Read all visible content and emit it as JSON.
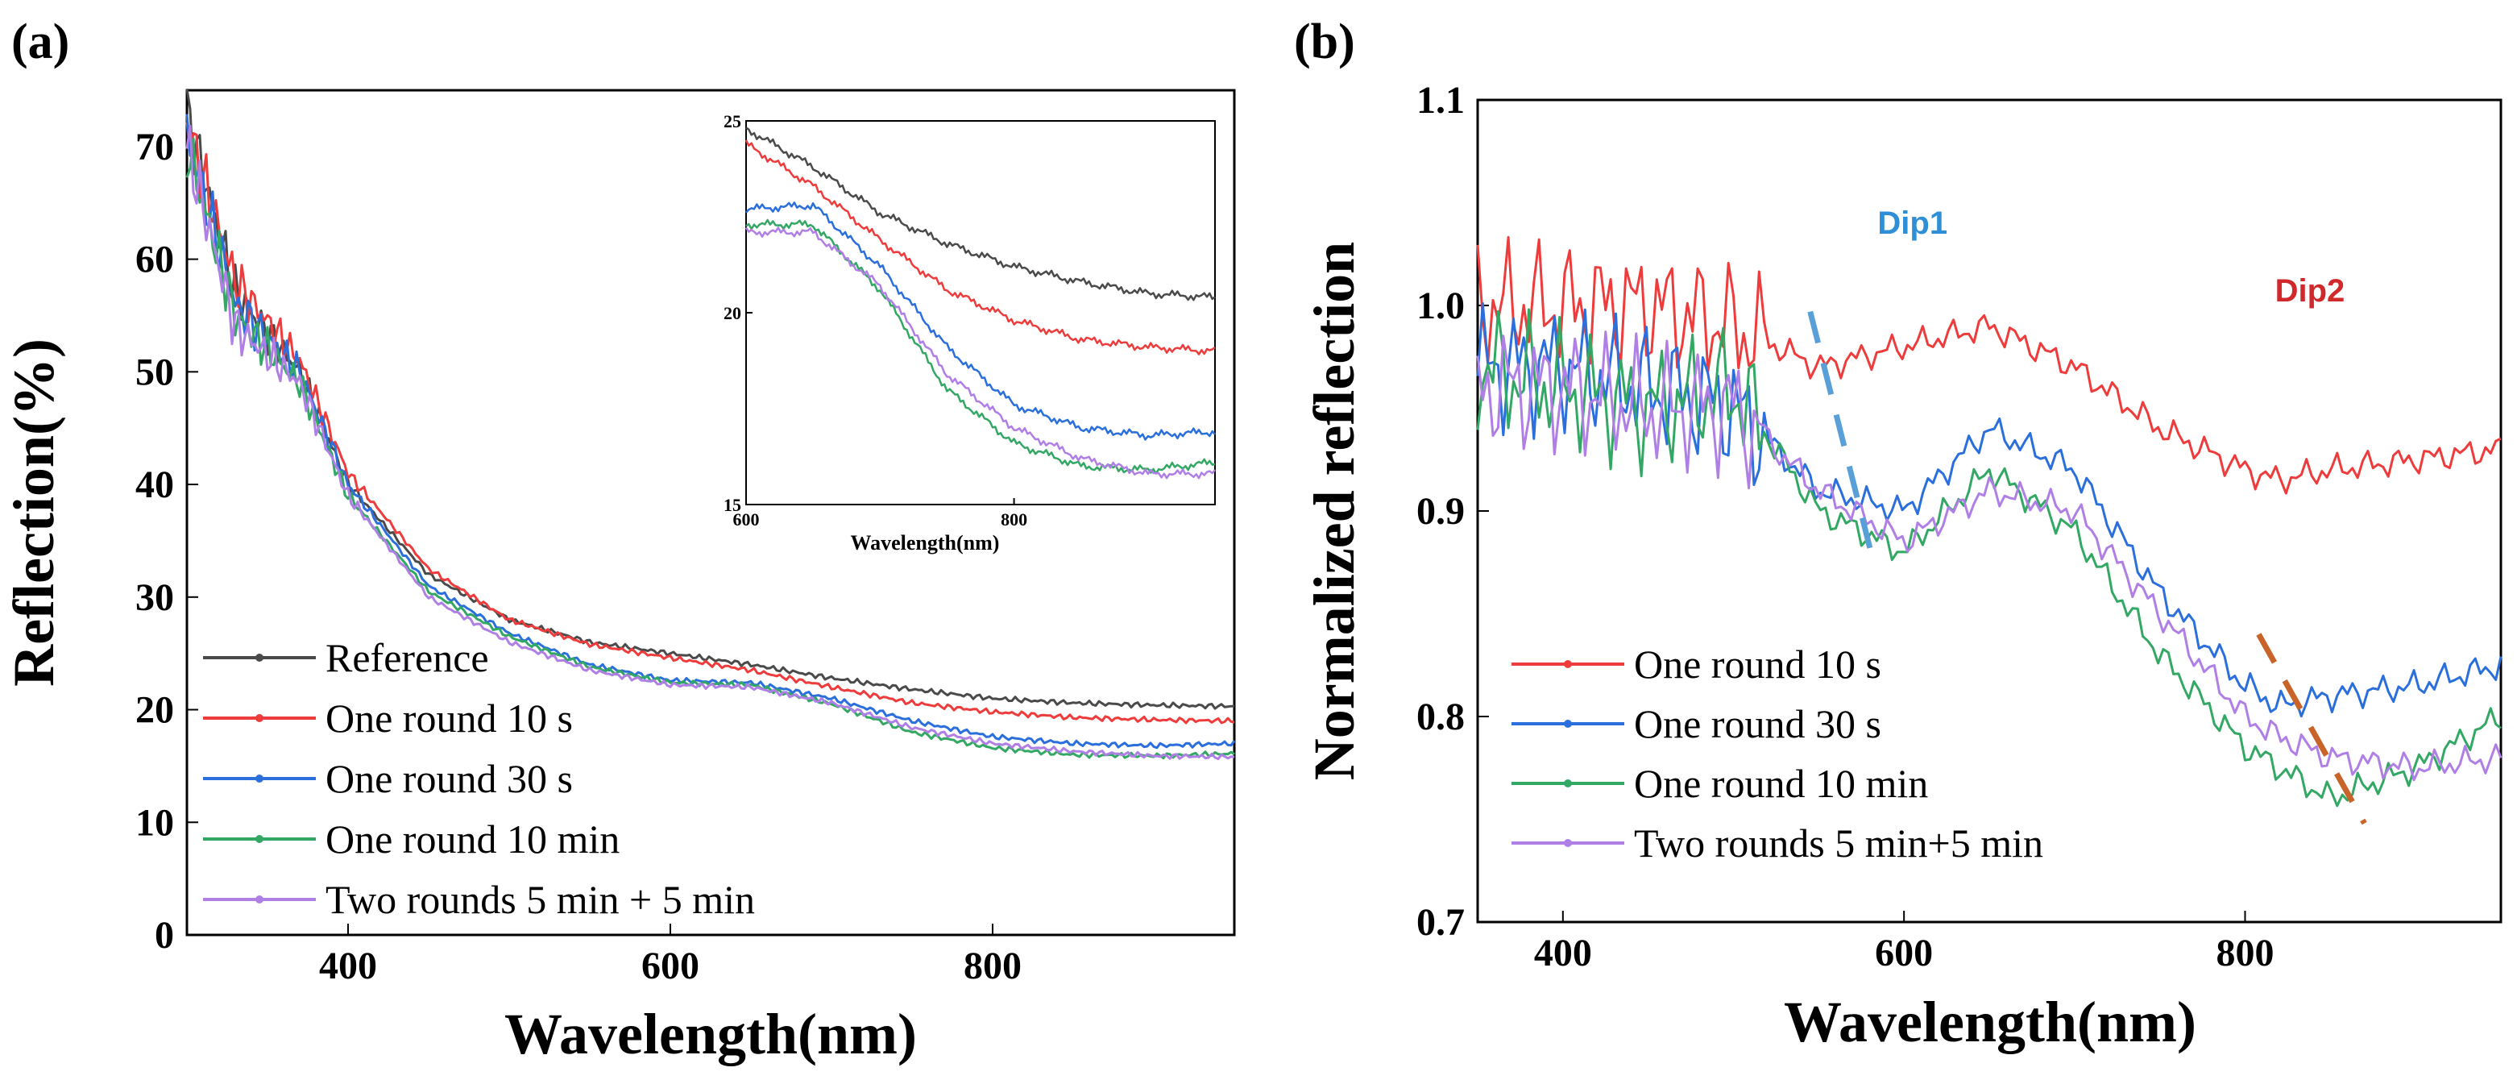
{
  "figure": {
    "panel_a_label": "(a)",
    "panel_b_label": "(b)"
  },
  "colors": {
    "Reference": "#4a4a4a",
    "One round 10 s": "#ee3b3b",
    "One round 30 s": "#2a6fdb",
    "One round 10 min": "#33a864",
    "Two rounds": "#b07fe6",
    "dip1": "#5aa0d8",
    "dip2": "#c8642a",
    "dip1_text": "#2f8fd6",
    "dip2_text": "#d0282b"
  },
  "chart_data": [
    {
      "id": "a",
      "type": "line",
      "title": "",
      "xlabel": "Wavelength(nm)",
      "ylabel": "Reflection(%)",
      "xlim": [
        300,
        950
      ],
      "ylim": [
        0,
        75
      ],
      "xticks": [
        400,
        600,
        800
      ],
      "yticks": [
        0,
        10,
        20,
        30,
        40,
        50,
        60,
        70
      ],
      "legend_position": "bottom-left",
      "series": [
        {
          "name": "Reference",
          "x": [
            300,
            330,
            370,
            400,
            450,
            500,
            550,
            600,
            650,
            700,
            750,
            800,
            850,
            900,
            950
          ],
          "values": [
            73,
            57,
            50,
            40,
            32,
            28,
            26,
            25,
            24,
            22.8,
            21.8,
            21,
            20.6,
            20.4,
            20.3
          ]
        },
        {
          "name": "One round 10 s",
          "x": [
            300,
            330,
            370,
            400,
            450,
            500,
            550,
            600,
            650,
            700,
            750,
            800,
            850,
            900,
            950
          ],
          "values": [
            72,
            58,
            51,
            41,
            32.5,
            28,
            25.8,
            24.6,
            23.5,
            22,
            20.6,
            19.8,
            19.3,
            19.1,
            19
          ]
        },
        {
          "name": "One round 30 s",
          "x": [
            300,
            330,
            370,
            400,
            450,
            500,
            550,
            600,
            650,
            700,
            750,
            800,
            850,
            900,
            950
          ],
          "values": [
            71,
            56,
            50,
            40,
            31,
            26.8,
            24,
            22.6,
            22.4,
            21,
            19,
            17.6,
            17,
            16.8,
            17
          ]
        },
        {
          "name": "One round 10 min",
          "x": [
            300,
            330,
            370,
            400,
            450,
            500,
            550,
            600,
            650,
            700,
            750,
            800,
            850,
            900,
            950
          ],
          "values": [
            70,
            55,
            49,
            39,
            30.5,
            26.5,
            23.8,
            22.4,
            22.2,
            20.5,
            18,
            16.6,
            16,
            15.9,
            16.1
          ]
        },
        {
          "name": "Two rounds 5 min + 5 min",
          "x": [
            300,
            330,
            370,
            400,
            450,
            500,
            550,
            600,
            650,
            700,
            750,
            800,
            850,
            900,
            950
          ],
          "values": [
            70,
            54,
            49,
            39,
            30,
            26,
            23.5,
            22.2,
            22,
            20.6,
            18.4,
            17,
            16.3,
            15.9,
            15.8
          ]
        }
      ],
      "inset": {
        "xlabel": "Wavelength(nm)",
        "xlim": [
          600,
          950
        ],
        "ylim": [
          15,
          25
        ],
        "xticks": [
          600,
          800
        ],
        "yticks": [
          15,
          20,
          25
        ],
        "series": [
          {
            "name": "Reference",
            "x": [
              600,
              650,
              700,
              750,
              800,
              850,
              900,
              950
            ],
            "values": [
              24.8,
              23.8,
              22.6,
              21.8,
              21.2,
              20.8,
              20.5,
              20.4
            ]
          },
          {
            "name": "One round 10 s",
            "x": [
              600,
              650,
              700,
              750,
              800,
              850,
              900,
              950
            ],
            "values": [
              24.4,
              23.3,
              21.9,
              20.6,
              19.8,
              19.3,
              19.1,
              19.0
            ]
          },
          {
            "name": "One round 30 s",
            "x": [
              600,
              650,
              700,
              750,
              800,
              850,
              900,
              950
            ],
            "values": [
              22.7,
              22.8,
              21.2,
              19.1,
              17.6,
              17.0,
              16.8,
              16.9
            ]
          },
          {
            "name": "One round 10 min",
            "x": [
              600,
              650,
              700,
              750,
              800,
              850,
              900,
              950
            ],
            "values": [
              22.3,
              22.3,
              20.6,
              18.0,
              16.6,
              16.0,
              15.9,
              16.1
            ]
          },
          {
            "name": "Two rounds 5 min + 5 min",
            "x": [
              600,
              650,
              700,
              750,
              800,
              850,
              900,
              950
            ],
            "values": [
              22.1,
              22.1,
              20.7,
              18.4,
              17.0,
              16.2,
              15.8,
              15.8
            ]
          }
        ]
      }
    },
    {
      "id": "b",
      "type": "line",
      "title": "",
      "xlabel": "Wavelength(nm)",
      "ylabel": "Normalized reflection",
      "xlim": [
        350,
        950
      ],
      "ylim": [
        0.7,
        1.1
      ],
      "xticks": [
        400,
        600,
        800
      ],
      "yticks": [
        0.7,
        0.8,
        0.9,
        1.0,
        1.1
      ],
      "legend_position": "bottom-left",
      "series": [
        {
          "name": "One round 10 s",
          "x": [
            350,
            400,
            450,
            500,
            550,
            600,
            650,
            700,
            750,
            800,
            820,
            850,
            900,
            950
          ],
          "values": [
            1.0,
            1.0,
            1.0,
            0.99,
            0.97,
            0.98,
            0.99,
            0.97,
            0.94,
            0.92,
            0.915,
            0.92,
            0.925,
            0.93
          ]
        },
        {
          "name": "One round 30 s",
          "x": [
            350,
            400,
            450,
            500,
            550,
            600,
            650,
            700,
            750,
            800,
            820,
            850,
            900,
            950
          ],
          "values": [
            0.97,
            0.97,
            0.96,
            0.95,
            0.91,
            0.9,
            0.94,
            0.92,
            0.86,
            0.815,
            0.805,
            0.81,
            0.815,
            0.825
          ]
        },
        {
          "name": "One round 10 min",
          "x": [
            350,
            400,
            450,
            500,
            550,
            600,
            650,
            700,
            750,
            800,
            820,
            850,
            900,
            950
          ],
          "values": [
            0.97,
            0.96,
            0.95,
            0.96,
            0.9,
            0.88,
            0.92,
            0.89,
            0.83,
            0.785,
            0.775,
            0.76,
            0.775,
            0.8
          ]
        },
        {
          "name": "Two rounds 5 min+5 min",
          "x": [
            350,
            400,
            450,
            500,
            550,
            600,
            650,
            700,
            750,
            800,
            820,
            850,
            900,
            950
          ],
          "values": [
            0.96,
            0.96,
            0.95,
            0.95,
            0.91,
            0.885,
            0.91,
            0.9,
            0.85,
            0.8,
            0.79,
            0.78,
            0.775,
            0.78
          ]
        }
      ],
      "annotations": [
        {
          "text": "Dip1",
          "x": 605,
          "y": 1.035
        },
        {
          "text": "Dip2",
          "x": 838,
          "y": 1.002
        }
      ],
      "dip_lines": [
        {
          "name": "Dip1",
          "from": [
            545,
            0.997
          ],
          "to": [
            580,
            0.882
          ]
        },
        {
          "name": "Dip2",
          "from": [
            808,
            0.84
          ],
          "to": [
            870,
            0.748
          ]
        }
      ]
    }
  ]
}
